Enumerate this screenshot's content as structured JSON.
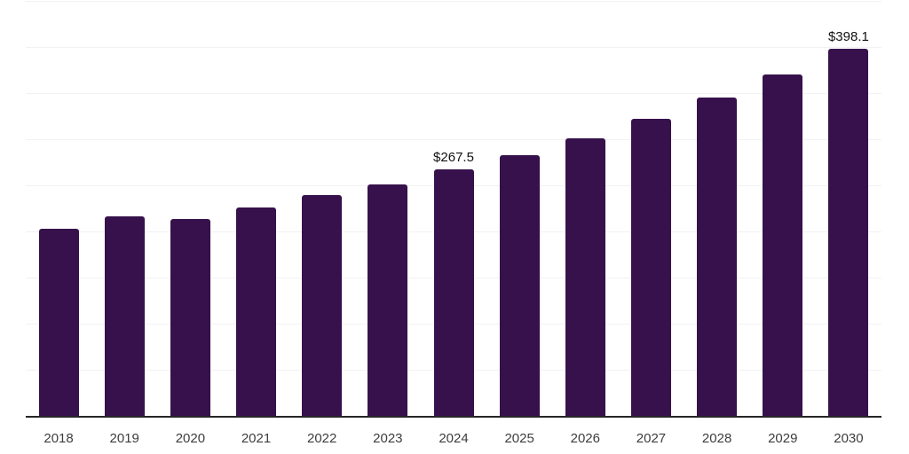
{
  "chart_data": {
    "type": "bar",
    "title": "",
    "xlabel": "",
    "ylabel": "",
    "categories": [
      "2018",
      "2019",
      "2020",
      "2021",
      "2022",
      "2023",
      "2024",
      "2025",
      "2026",
      "2027",
      "2028",
      "2029",
      "2030"
    ],
    "values": [
      203,
      216,
      213,
      226,
      239,
      251,
      267.5,
      283,
      301,
      322,
      345,
      370,
      398.1
    ],
    "data_labels": [
      "",
      "",
      "",
      "",
      "",
      "",
      "$267.5",
      "",
      "",
      "",
      "",
      "",
      "$398.1"
    ],
    "ylim": [
      0,
      450
    ],
    "gridline_step": 50,
    "grid": true,
    "legend": false,
    "colors": {
      "bar": "#36114B",
      "gridline": "#F2F2F2",
      "axis_line": "#262626",
      "tick_label": "#3D3D3D",
      "data_label": "#111111",
      "background": "#FFFFFF"
    }
  }
}
